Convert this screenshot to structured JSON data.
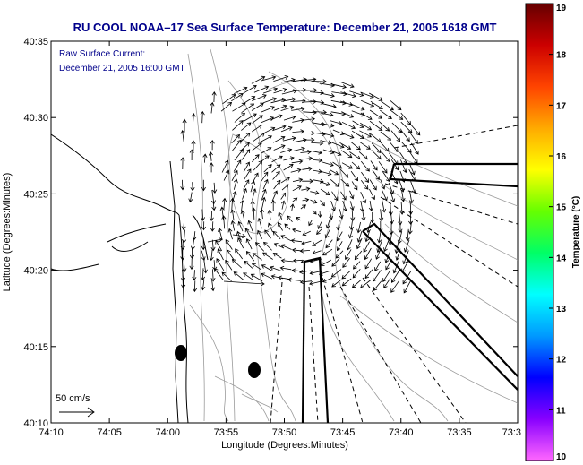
{
  "chart_data": {
    "type": "map",
    "title": "RU COOL  NOAA–17  Sea Surface Temperature:  December 21, 2005 1618 GMT",
    "annotations": [
      "Raw Surface Current:",
      "December 21, 2005 16:00 GMT"
    ],
    "scale_label": "50 cm/s",
    "xlabel": "Longitude (Degrees:Minutes)",
    "ylabel": "Latitude (Degrees:Minutes)",
    "x_ticks": [
      "74:10",
      "74:05",
      "74:00",
      "73:55",
      "73:50",
      "73:45",
      "73:40",
      "73:35",
      "73:3"
    ],
    "y_ticks": [
      "40:35",
      "40:30",
      "40:25",
      "40:20",
      "40:15",
      "40:10"
    ],
    "xlim_deg": [
      -74.1667,
      -73.5
    ],
    "ylim_deg": [
      40.1667,
      40.5833
    ],
    "colorbar": {
      "label": "Temperature (°C)",
      "min": 10,
      "max": 19,
      "ticks": [
        "19",
        "18",
        "17",
        "16",
        "15",
        "14",
        "13",
        "12",
        "11",
        "10"
      ],
      "colors": [
        "#ff66ff",
        "#8800ff",
        "#0000ff",
        "#0099ff",
        "#00ffff",
        "#00ff66",
        "#66ff00",
        "#ffff00",
        "#ffaa00",
        "#ff4400",
        "#cc0000",
        "#660000"
      ]
    },
    "current_field": {
      "type": "eddy",
      "center_lon": -73.805,
      "center_lat": 40.395,
      "rotation": "clockwise",
      "max_speed_cm_s": 25
    },
    "markers": [
      {
        "lon": -73.98,
        "lat": 40.245,
        "type": "station"
      },
      {
        "lon": -73.87,
        "lat": 40.222,
        "type": "station"
      }
    ]
  }
}
